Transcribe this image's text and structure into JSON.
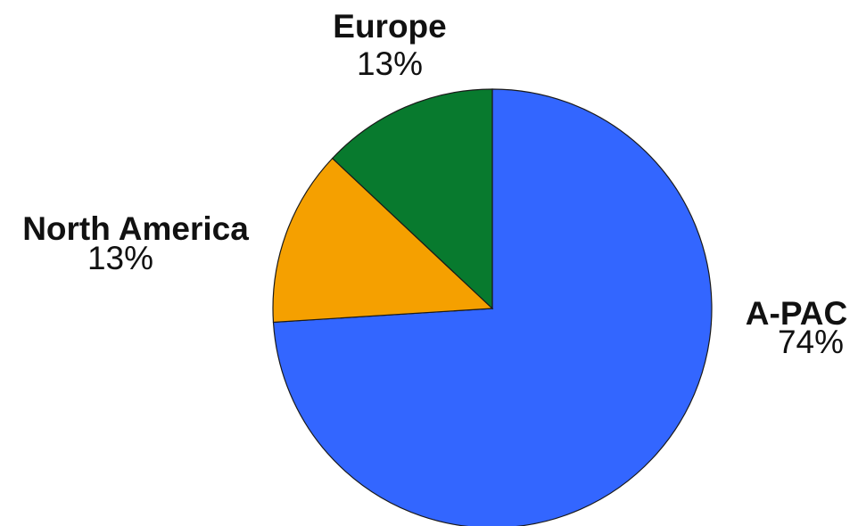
{
  "chart_data": {
    "type": "pie",
    "title": "",
    "slices": [
      {
        "label": "A-PAC",
        "value": 74,
        "value_label": "74%",
        "color": "#3366ff"
      },
      {
        "label": "North America",
        "value": 13,
        "value_label": "13%",
        "color": "#f5a000"
      },
      {
        "label": "Europe",
        "value": 13,
        "value_label": "13%",
        "color": "#087a2e"
      }
    ]
  }
}
